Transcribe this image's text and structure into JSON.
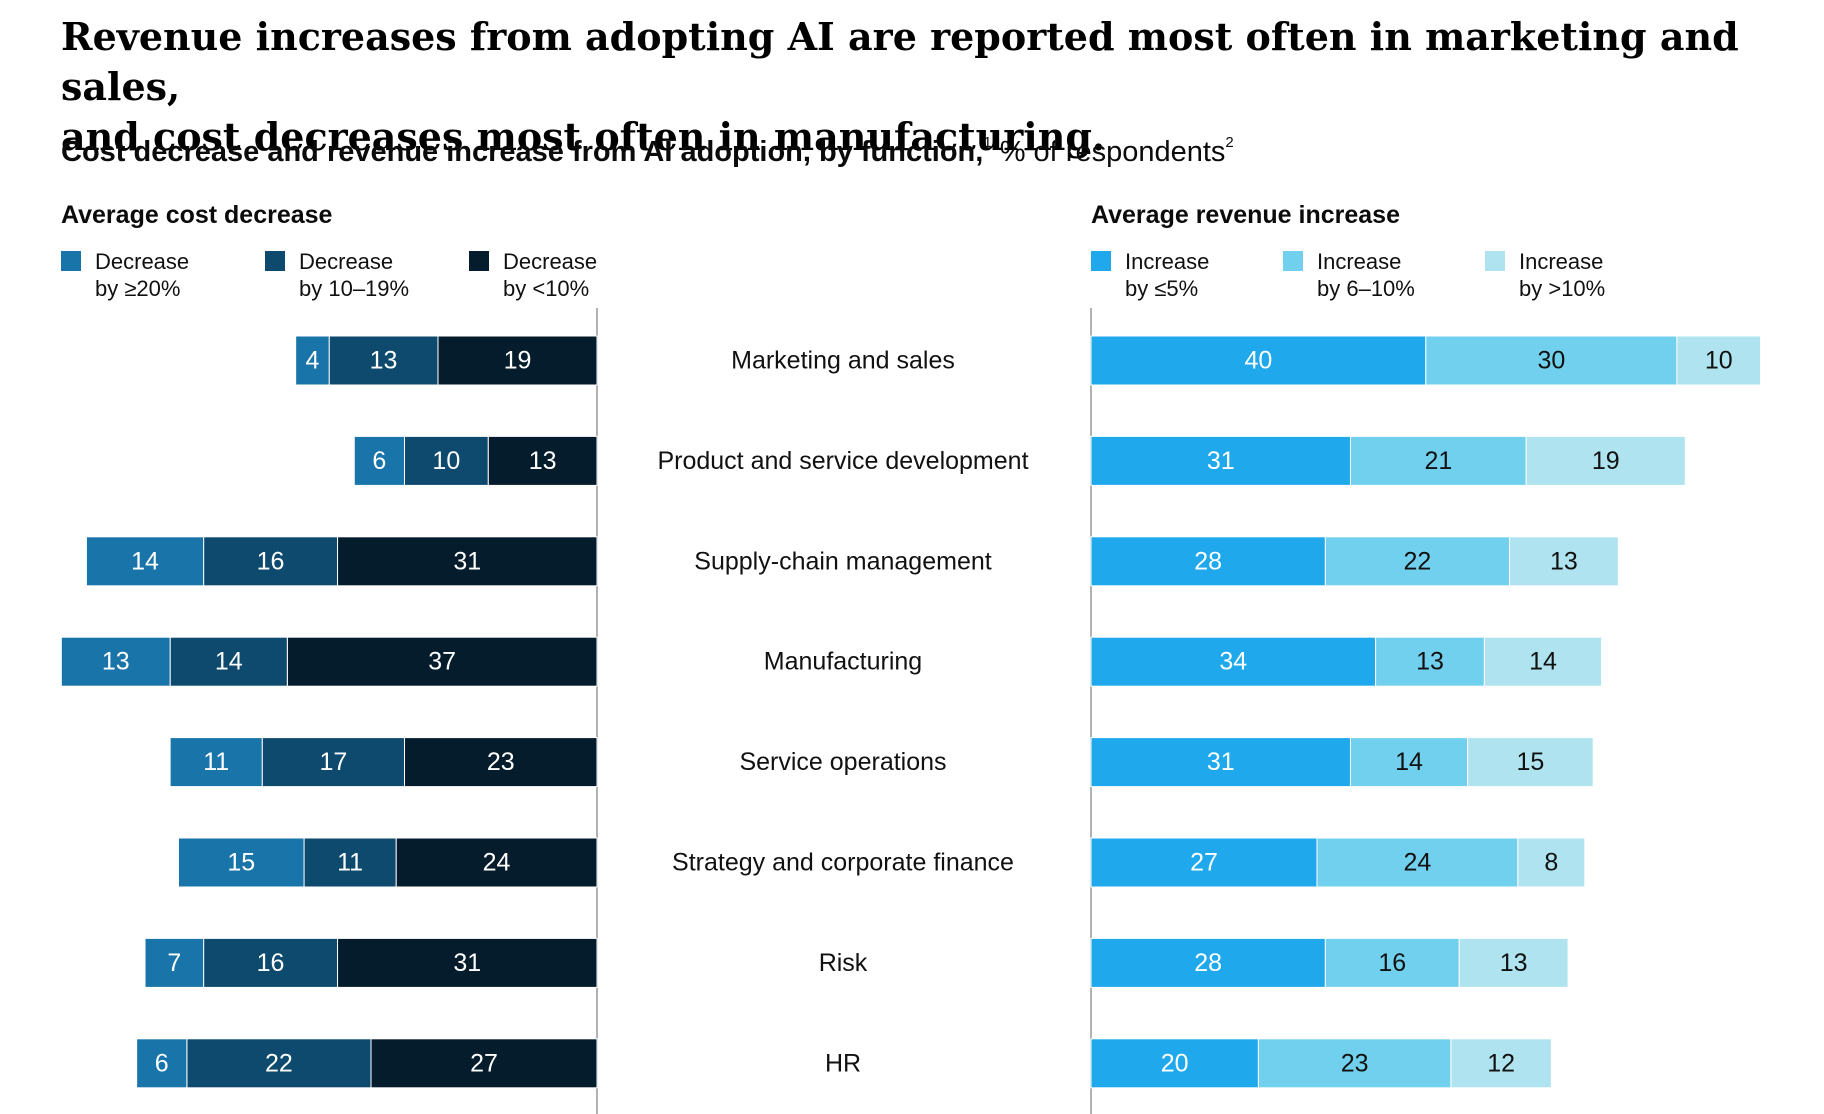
{
  "title_lines": [
    "Revenue increases from adopting AI are reported most often in marketing and sales,",
    "and cost decreases most often in manufacturing."
  ],
  "subtitle": {
    "bold": "Cost decrease and revenue increase from AI adoption, by function,",
    "sup1": "1",
    "rest": " % of respondents",
    "sup2": "2"
  },
  "colors": {
    "cost_ge20": "#1874a9",
    "cost_10_19": "#0d4a6e",
    "cost_lt10": "#051c2c",
    "rev_le5": "#1fa9ec",
    "rev_6_10": "#72d0ef",
    "rev_gt10": "#aee3ef",
    "axis": "#999999",
    "label_light": "#ffffff",
    "label_dark": "#111111"
  },
  "chart_data": {
    "type": "bar",
    "orientation": "horizontal",
    "stacked": true,
    "categories": [
      "Marketing and sales",
      "Product and service development",
      "Supply-chain management",
      "Manufacturing",
      "Service operations",
      "Strategy and corporate finance",
      "Risk",
      "HR"
    ],
    "left_panel": {
      "title": "Average cost decrease",
      "direction": "leftward",
      "series": [
        {
          "name": "Decrease by ≥20%",
          "legend_lines": [
            "Decrease",
            "by ≥20%"
          ],
          "color_key": "cost_ge20",
          "values": [
            4,
            6,
            14,
            13,
            11,
            15,
            7,
            6
          ]
        },
        {
          "name": "Decrease by 10–19%",
          "legend_lines": [
            "Decrease",
            "by 10–19%"
          ],
          "color_key": "cost_10_19",
          "values": [
            13,
            10,
            16,
            14,
            17,
            11,
            16,
            22
          ]
        },
        {
          "name": "Decrease by <10%",
          "legend_lines": [
            "Decrease",
            "by <10%"
          ],
          "color_key": "cost_lt10",
          "values": [
            19,
            13,
            31,
            37,
            23,
            24,
            31,
            27
          ]
        }
      ]
    },
    "right_panel": {
      "title": "Average revenue increase",
      "direction": "rightward",
      "series": [
        {
          "name": "Increase by ≤5%",
          "legend_lines": [
            "Increase",
            "by ≤5%"
          ],
          "color_key": "rev_le5",
          "values": [
            40,
            31,
            28,
            34,
            31,
            27,
            28,
            20
          ]
        },
        {
          "name": "Increase by 6–10%",
          "legend_lines": [
            "Increase",
            "by 6–10%"
          ],
          "color_key": "rev_6_10",
          "values": [
            30,
            21,
            22,
            13,
            14,
            24,
            16,
            23
          ]
        },
        {
          "name": "Increase by >10%",
          "legend_lines": [
            "Increase",
            "by >10%"
          ],
          "color_key": "rev_gt10",
          "values": [
            10,
            19,
            13,
            14,
            15,
            8,
            13,
            12
          ]
        }
      ]
    }
  }
}
